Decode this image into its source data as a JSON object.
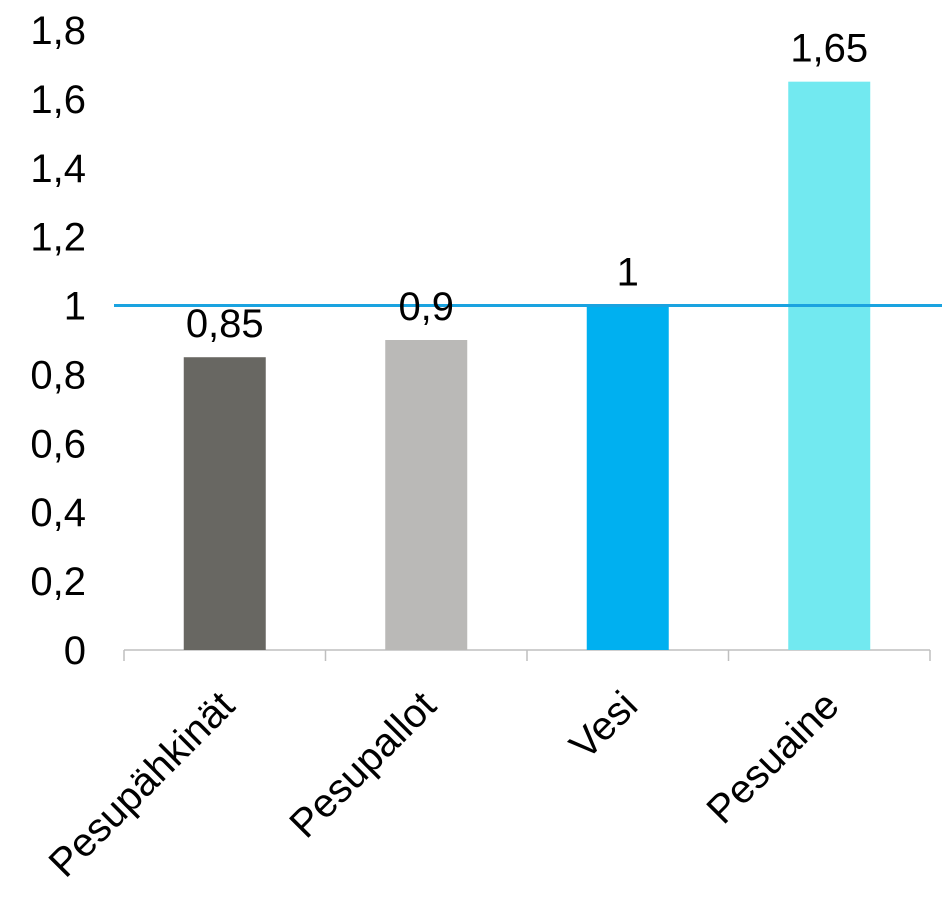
{
  "chart_data": {
    "type": "bar",
    "categories": [
      "Pesupähkinät",
      "Pesupallot",
      "Vesi",
      "Pesuaine"
    ],
    "values": [
      0.85,
      0.9,
      1,
      1.65
    ],
    "data_labels": [
      "0,85",
      "0,9",
      "1",
      "1,65"
    ],
    "bar_colors": [
      "#686762",
      "#bab9b7",
      "#00b0f0",
      "#72e9f0"
    ],
    "ylim": [
      0,
      1.8
    ],
    "y_ticks": [
      0,
      0.2,
      0.4,
      0.6,
      0.8,
      1,
      1.2,
      1.4,
      1.6,
      1.8
    ],
    "y_tick_labels": [
      "0",
      "0,2",
      "0,4",
      "0,6",
      "0,8",
      "1",
      "1,2",
      "1,4",
      "1,6",
      "1,8"
    ],
    "reference_line": {
      "value": 1,
      "color": "#1aa3e0"
    },
    "grid": false,
    "legend": "none",
    "title": "",
    "xlabel": "",
    "ylabel": ""
  }
}
